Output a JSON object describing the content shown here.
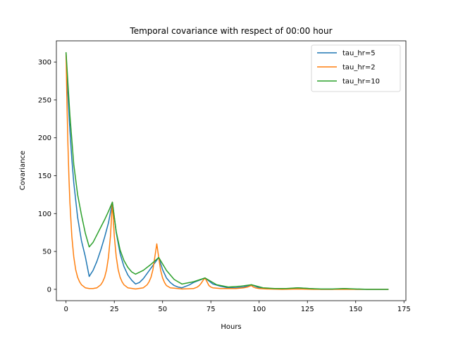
{
  "chart_data": {
    "type": "line",
    "title": "Temporal covariance with respect of 00:00 hour",
    "xlabel": "Hours",
    "ylabel": "Covariance",
    "xlim": [
      -5,
      176
    ],
    "ylim": [
      -15,
      328
    ],
    "xticks": [
      0,
      25,
      50,
      75,
      100,
      125,
      150,
      175
    ],
    "yticks": [
      0,
      50,
      100,
      150,
      200,
      250,
      300
    ],
    "grid": false,
    "legend_position": "top-right",
    "series": [
      {
        "name": "tau_hr=5",
        "color": "#1f77b4",
        "x": [
          0,
          1,
          2,
          3,
          4,
          6,
          8,
          10,
          12,
          14,
          16,
          18,
          20,
          22,
          24,
          26,
          28,
          30,
          32,
          34,
          36,
          38,
          40,
          42,
          44,
          46,
          48,
          50,
          52,
          54,
          56,
          58,
          60,
          62,
          64,
          66,
          68,
          70,
          72,
          76,
          80,
          84,
          88,
          92,
          96,
          100,
          104,
          108,
          112,
          116,
          120,
          126,
          132,
          138,
          144,
          150,
          156,
          162,
          167
        ],
        "y": [
          312,
          256,
          210,
          172,
          141,
          95,
          64,
          43,
          17,
          25,
          37,
          52,
          69,
          88,
          115,
          75,
          47,
          30,
          19,
          12,
          7,
          9,
          14,
          21,
          28,
          35,
          42,
          26,
          15,
          9,
          5,
          3,
          2,
          4,
          6,
          9,
          11,
          13,
          15,
          7,
          4,
          2,
          2,
          3,
          6,
          2,
          1,
          1,
          1,
          1,
          2,
          1,
          0,
          0,
          1,
          0,
          0,
          0,
          0
        ]
      },
      {
        "name": "tau_hr=2",
        "color": "#ff7f0e",
        "x": [
          0,
          0.5,
          1,
          1.5,
          2,
          3,
          4,
          5,
          6,
          7,
          8,
          10,
          12,
          14,
          16,
          17,
          18,
          19,
          20,
          21,
          22,
          23,
          24,
          25,
          26,
          27,
          28,
          29,
          30,
          32,
          36,
          40,
          42,
          43,
          44,
          45,
          46,
          47,
          48,
          49,
          50,
          51,
          52,
          54,
          60,
          66,
          68,
          69,
          70,
          71,
          72,
          73,
          74,
          75,
          76,
          80,
          84,
          88,
          92,
          94,
          96,
          97,
          98,
          100,
          104,
          112,
          120,
          128,
          136,
          144,
          152,
          160,
          167
        ],
        "y": [
          312,
          243,
          190,
          148,
          115,
          70,
          43,
          26,
          16,
          10,
          6,
          2,
          1,
          1,
          2,
          4,
          6,
          10,
          16,
          26,
          43,
          70,
          115,
          70,
          43,
          26,
          16,
          10,
          6,
          2,
          0.5,
          2,
          6,
          10,
          16,
          26,
          43,
          60,
          42,
          25,
          15,
          9,
          5,
          2,
          0.5,
          1,
          3,
          5,
          8,
          12,
          15,
          10,
          5,
          3,
          2,
          1,
          1,
          1,
          2,
          3,
          5,
          3,
          2,
          1,
          0.5,
          0,
          0.5,
          0,
          0,
          0,
          0,
          0,
          0
        ]
      },
      {
        "name": "tau_hr=10",
        "color": "#2ca02c",
        "x": [
          0,
          2,
          4,
          6,
          8,
          10,
          12,
          14,
          16,
          18,
          20,
          22,
          24,
          26,
          28,
          30,
          32,
          34,
          36,
          40,
          44,
          48,
          52,
          56,
          60,
          66,
          72,
          78,
          84,
          90,
          96,
          102,
          108,
          114,
          120,
          126,
          132,
          138,
          144,
          150,
          156,
          162,
          167
        ],
        "y": [
          313,
          230,
          165,
          125,
          98,
          74,
          56,
          62,
          72,
          82,
          92,
          103,
          115,
          76,
          52,
          38,
          29,
          23,
          20,
          25,
          33,
          42,
          25,
          13,
          7,
          10,
          15,
          6,
          3,
          4,
          6,
          2,
          1,
          1,
          2,
          1,
          0.5,
          0.5,
          1,
          0.5,
          0,
          0,
          0
        ]
      }
    ]
  }
}
